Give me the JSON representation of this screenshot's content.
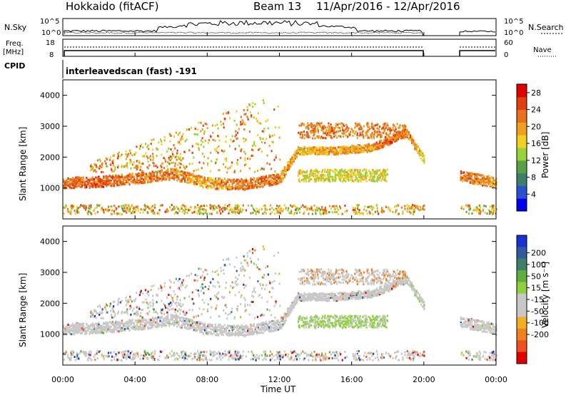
{
  "header": {
    "title": "Hokkaido (fitACF)",
    "beam": "Beam 13",
    "date_range": "11/Apr/2016 - 12/Apr/2016"
  },
  "strips": {
    "nsky_label": "N.Sky",
    "nsearch_label": "N.Search",
    "nsky_ticks": [
      "10^5",
      "10^0"
    ],
    "nsearch_ticks": [
      "10^5",
      "10^0"
    ],
    "freq_label": "Freq.",
    "freq_unit": "[MHz]",
    "freq_ticks": [
      "18",
      "8"
    ],
    "nave_label": "Nave",
    "nave_ticks": [
      "60",
      "0"
    ],
    "cpid_label": "CPID",
    "cpid_value": "interleavedscan (fast) -191"
  },
  "panels": {
    "ylabel": "Slant Range [km]",
    "xlabel": "Time UT",
    "x_ticks": [
      "00:00",
      "04:00",
      "08:00",
      "12:00",
      "16:00",
      "20:00",
      "00:00"
    ],
    "y_ticks": [
      "1000",
      "2000",
      "3000",
      "4000"
    ]
  },
  "colorbars": {
    "power_label": "Power [dB]",
    "power_ticks": [
      "28",
      "24",
      "20",
      "16",
      "12",
      "8",
      "4"
    ],
    "power_colors": [
      "#0000ee",
      "#2a4fd0",
      "#3f7f6a",
      "#5a9e48",
      "#9ad23a",
      "#f0d020",
      "#f0a020",
      "#e87020",
      "#e04010",
      "#e00000"
    ],
    "velocity_label": "Velocity [m s⁻¹]",
    "velocity_ticks": [
      "200",
      "100",
      "50",
      "15",
      "-15",
      "-50",
      "-100",
      "-200"
    ],
    "velocity_colors": [
      "#1c2fd0",
      "#335aa0",
      "#3f7f6a",
      "#5fae40",
      "#8fd040",
      "#c8c8c8",
      "#c8c8c8",
      "#f0b020",
      "#f08020",
      "#f05020",
      "#e00000"
    ],
    "gray_color": "#c8c8c8"
  },
  "chart_data": [
    {
      "type": "heatmap",
      "name": "power",
      "xlabel": "Time UT",
      "ylabel": "Slant Range [km]",
      "xlim": [
        "00:00",
        "24:00"
      ],
      "ylim": [
        0,
        4500
      ],
      "colorbar": "Power [dB]",
      "clim": [
        0,
        30
      ],
      "data_gap": [
        "20:00",
        "22:00"
      ],
      "main_echo_band": [
        {
          "t": 0,
          "range": 1150,
          "power": 26
        },
        {
          "t": 2,
          "range": 1200,
          "power": 28
        },
        {
          "t": 4,
          "range": 1300,
          "power": 26
        },
        {
          "t": 6,
          "range": 1450,
          "power": 26
        },
        {
          "t": 8,
          "range": 1150,
          "power": 24
        },
        {
          "t": 10,
          "range": 1100,
          "power": 26
        },
        {
          "t": 12,
          "range": 1300,
          "power": 26
        },
        {
          "t": 13,
          "range": 2200,
          "power": 22
        },
        {
          "t": 15,
          "range": 2200,
          "power": 24
        },
        {
          "t": 17,
          "range": 2300,
          "power": 24
        },
        {
          "t": 18,
          "range": 2500,
          "power": 28
        },
        {
          "t": 19,
          "range": 2800,
          "power": 26
        },
        {
          "t": 20,
          "range": 1900,
          "power": 20
        },
        {
          "t": 22,
          "range": 1400,
          "power": 26
        },
        {
          "t": 24,
          "range": 1150,
          "power": 24
        }
      ]
    },
    {
      "type": "heatmap",
      "name": "velocity",
      "xlabel": "Time UT",
      "ylabel": "Slant Range [km]",
      "xlim": [
        "00:00",
        "24:00"
      ],
      "ylim": [
        0,
        4500
      ],
      "colorbar": "Velocity [m s⁻¹]",
      "clim": [
        -200,
        200
      ],
      "data_gap": [
        "20:00",
        "22:00"
      ]
    }
  ]
}
